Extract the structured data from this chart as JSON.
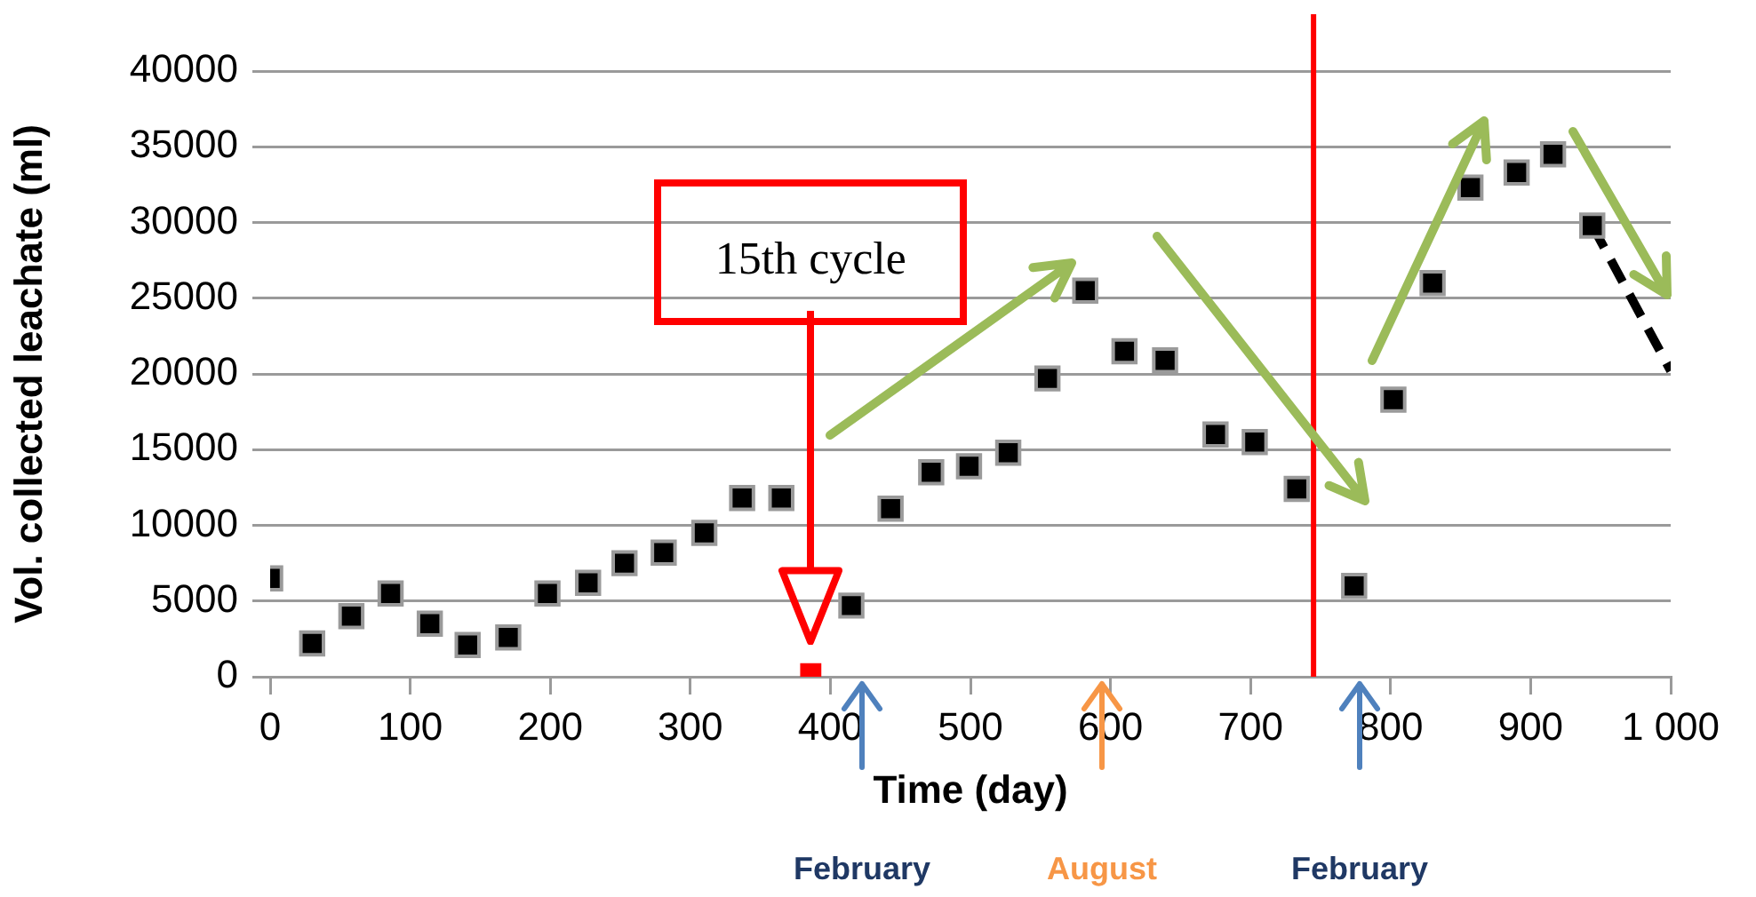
{
  "chart_data": {
    "type": "scatter",
    "xlabel": "Time (day)",
    "ylabel": "Vol. collected leachate (ml)",
    "xlim": [
      0,
      1000
    ],
    "xticks": [
      0,
      100,
      200,
      300,
      400,
      500,
      600,
      700,
      800,
      900,
      {
        "value": 1000,
        "label": "1 000"
      }
    ],
    "ylim": [
      0,
      40000
    ],
    "yticks": [
      0,
      5000,
      10000,
      15000,
      20000,
      25000,
      30000,
      35000,
      40000
    ],
    "grid": "y",
    "legend": false,
    "marker": "square",
    "series": [
      {
        "color": "#000000",
        "x": [
          0,
          30,
          58,
          86,
          114,
          141,
          170,
          198,
          227,
          253,
          281,
          310,
          337,
          365,
          415,
          443,
          472,
          499,
          527,
          555,
          582,
          610,
          639,
          675,
          703,
          733,
          774,
          802,
          830,
          857,
          890,
          916,
          944
        ],
        "values": [
          6500,
          2200,
          4000,
          5500,
          3500,
          2100,
          2600,
          5500,
          6200,
          7500,
          8200,
          9500,
          11800,
          11800,
          4700,
          11100,
          13500,
          13900,
          14800,
          19700,
          25500,
          21500,
          20900,
          16000,
          15500,
          12400,
          6000,
          18300,
          26000,
          32300,
          33300,
          34500,
          29800
        ]
      },
      {
        "color": "#ff0000",
        "x": [
          386
        ],
        "values": [
          200
        ]
      },
      {
        "type": "line",
        "color": "#000000",
        "marker": "none",
        "line_style": "dashed",
        "x": [
          944,
          1000
        ],
        "values": [
          29800,
          20200
        ]
      }
    ],
    "ref_lines": [
      {
        "axis": "x",
        "value": 745,
        "color": "#ff0000"
      }
    ],
    "annotations": [
      "15th cycle",
      "February",
      "August",
      "February"
    ]
  }
}
